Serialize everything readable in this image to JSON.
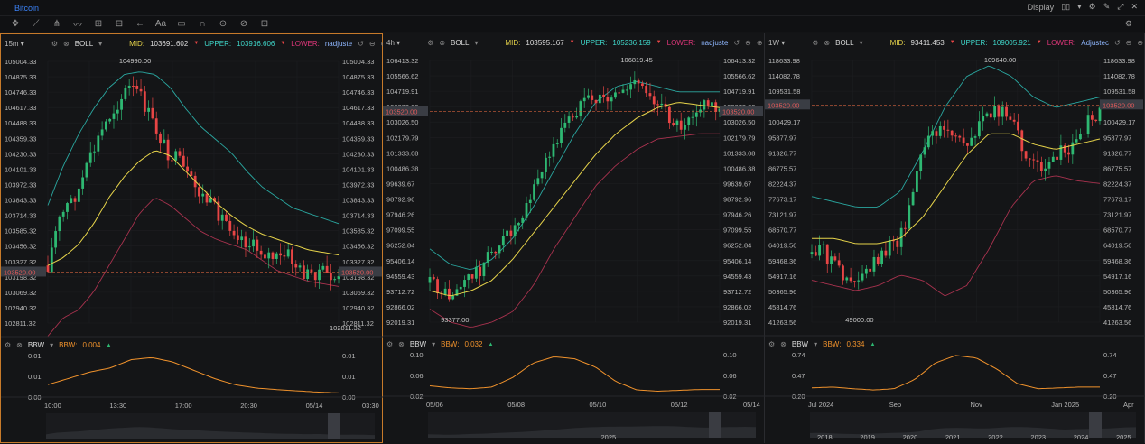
{
  "app": {
    "title": "Bitcoin",
    "display_label": "Display",
    "toolbar_icons": [
      "crosshair-icon",
      "trendline-icon",
      "pitchfork-icon",
      "wave-icon",
      "pattern-icon",
      "measure-icon",
      "arrow-icon",
      "text-icon",
      "note-icon",
      "magnet-icon",
      "lock-icon",
      "hide-icon",
      "trash-icon",
      "layout-icon"
    ],
    "toolbar_text": "Aa"
  },
  "current_price": "103520.00",
  "colors": {
    "up": "#2eb872",
    "down": "#e84545",
    "mid": "#e6d34a",
    "upper": "#2aa7a0",
    "lower": "#a8324e",
    "bbw": "#f0922c"
  },
  "panes": [
    {
      "timeframe": "15m",
      "indicator": "BOLL",
      "mid_label": "MID:",
      "mid_value": "103691.602",
      "upper_label": "UPPER:",
      "upper_value": "103916.606",
      "lower_label": "LOWER:",
      "lower_value": "nadjuste",
      "bbw_name": "BBW",
      "bbw_label": "BBW:",
      "bbw_value": "0.004",
      "price_ticks": [
        "105004.33",
        "104875.33",
        "104746.33",
        "104617.33",
        "104488.33",
        "104359.33",
        "104230.33",
        "104101.33",
        "103972.33",
        "103843.33",
        "103714.33",
        "103585.32",
        "103456.32",
        "103327.32",
        "103198.32",
        "103069.32",
        "102940.32",
        "102811.32"
      ],
      "price_range": [
        102811.32,
        105004.33
      ],
      "high_label": "104990.00",
      "low_label": "102811.32",
      "bbw_ticks": [
        "0.01",
        "0.01",
        "0.00"
      ],
      "time_ticks": [
        "10:00",
        "13:30",
        "17:00",
        "20:30",
        "05/14",
        "03:30"
      ],
      "nav_ticks": []
    },
    {
      "timeframe": "4h",
      "indicator": "BOLL",
      "mid_label": "MID:",
      "mid_value": "103595.167",
      "upper_label": "UPPER:",
      "upper_value": "105236.159",
      "lower_label": "LOWER:",
      "lower_value": "nadjuste",
      "bbw_name": "BBW",
      "bbw_label": "BBW:",
      "bbw_value": "0.032",
      "price_ticks": [
        "106413.32",
        "105566.62",
        "104719.91",
        "103873.20",
        "103026.50",
        "102179.79",
        "101333.08",
        "100486.38",
        "99639.67",
        "98792.96",
        "97946.26",
        "97099.55",
        "96252.84",
        "95406.14",
        "94559.43",
        "93712.72",
        "92866.02",
        "92019.31"
      ],
      "price_range": [
        92019.31,
        106413.32
      ],
      "high_label": "106819.45",
      "low_label": "93377.00",
      "bbw_ticks": [
        "0.10",
        "0.06",
        "0.02"
      ],
      "time_ticks": [
        "05/06",
        "05/08",
        "05/10",
        "05/12",
        "05/14"
      ],
      "nav_ticks": [
        "2025"
      ]
    },
    {
      "timeframe": "1W",
      "indicator": "BOLL",
      "mid_label": "MID:",
      "mid_value": "93411.453",
      "upper_label": "UPPER:",
      "upper_value": "109005.921",
      "lower_label": "LOWER:",
      "lower_value": "Adjustec",
      "bbw_name": "BBW",
      "bbw_label": "BBW:",
      "bbw_value": "0.334",
      "price_ticks": [
        "118633.98",
        "114082.78",
        "109531.58",
        "104980.38",
        "100429.17",
        "95877.97",
        "91326.77",
        "86775.57",
        "82224.37",
        "77673.17",
        "73121.97",
        "68570.77",
        "64019.56",
        "59468.36",
        "54917.16",
        "50365.96",
        "45814.76",
        "41263.56"
      ],
      "price_range": [
        41263.56,
        118633.98
      ],
      "high_label": "109640.00",
      "low_label": "49000.00",
      "bbw_ticks": [
        "0.74",
        "0.47",
        "0.20"
      ],
      "time_ticks": [
        "Jul 2024",
        "Sep",
        "Nov",
        "Jan 2025",
        "Apr"
      ],
      "nav_ticks": [
        "2018",
        "2019",
        "2020",
        "2021",
        "2022",
        "2023",
        "2024",
        "2025"
      ]
    }
  ]
}
